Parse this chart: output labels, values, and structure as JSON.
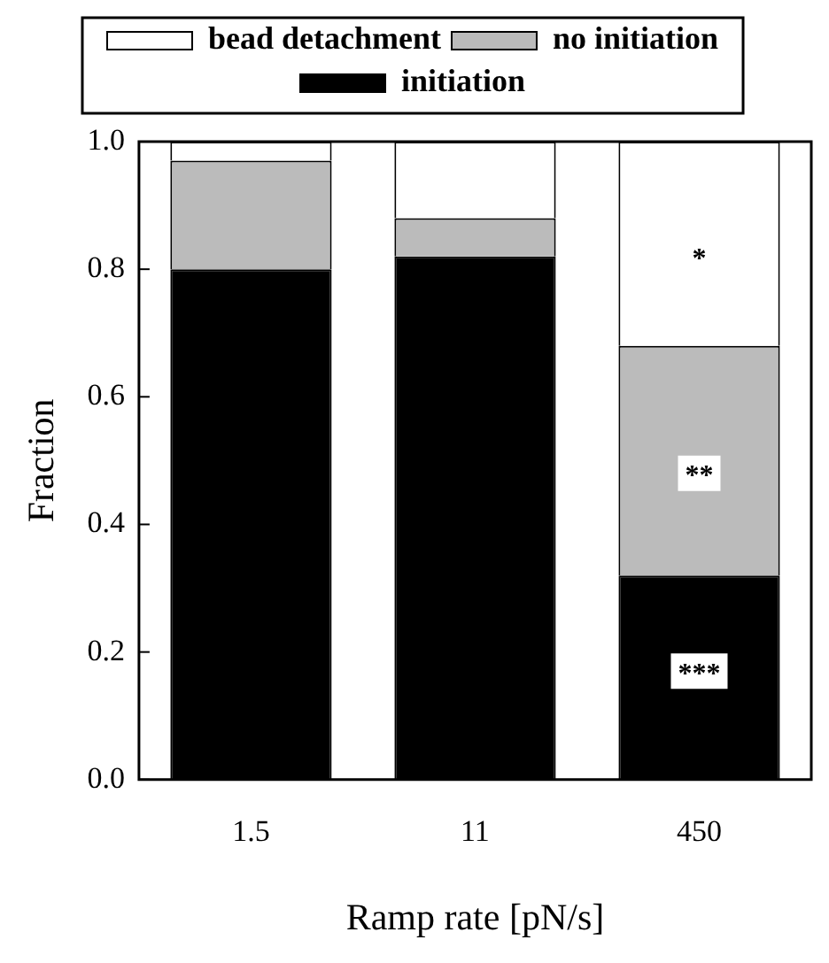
{
  "chart_data": {
    "type": "bar",
    "stacked": true,
    "xlabel": "Ramp rate [pN/s]",
    "ylabel": "Fraction",
    "categories": [
      "1.5",
      "11",
      "450"
    ],
    "series": [
      {
        "name": "initiation",
        "color": "#000000",
        "values": [
          0.8,
          0.82,
          0.32
        ]
      },
      {
        "name": "no initiation",
        "color": "#bbbbbb",
        "values": [
          0.17,
          0.06,
          0.36
        ]
      },
      {
        "name": "bead detachment",
        "color": "#ffffff",
        "values": [
          0.03,
          0.12,
          0.32
        ]
      }
    ],
    "ylim": [
      0,
      1
    ],
    "yticks": [
      {
        "value": 0,
        "label": "0.0"
      },
      {
        "value": 0.2,
        "label": "0.2"
      },
      {
        "value": 0.4,
        "label": "0.4"
      },
      {
        "value": 0.6,
        "label": "0.6"
      },
      {
        "value": 0.8,
        "label": "0.8"
      },
      {
        "value": 1,
        "label": "1.0"
      }
    ],
    "grid": false,
    "legend": "top",
    "annotations": [
      {
        "text": "*",
        "x": "450",
        "y": 0.82
      },
      {
        "text": "**",
        "x": "450",
        "y": 0.48
      },
      {
        "text": "***",
        "x": "450",
        "y": 0.17
      }
    ]
  }
}
